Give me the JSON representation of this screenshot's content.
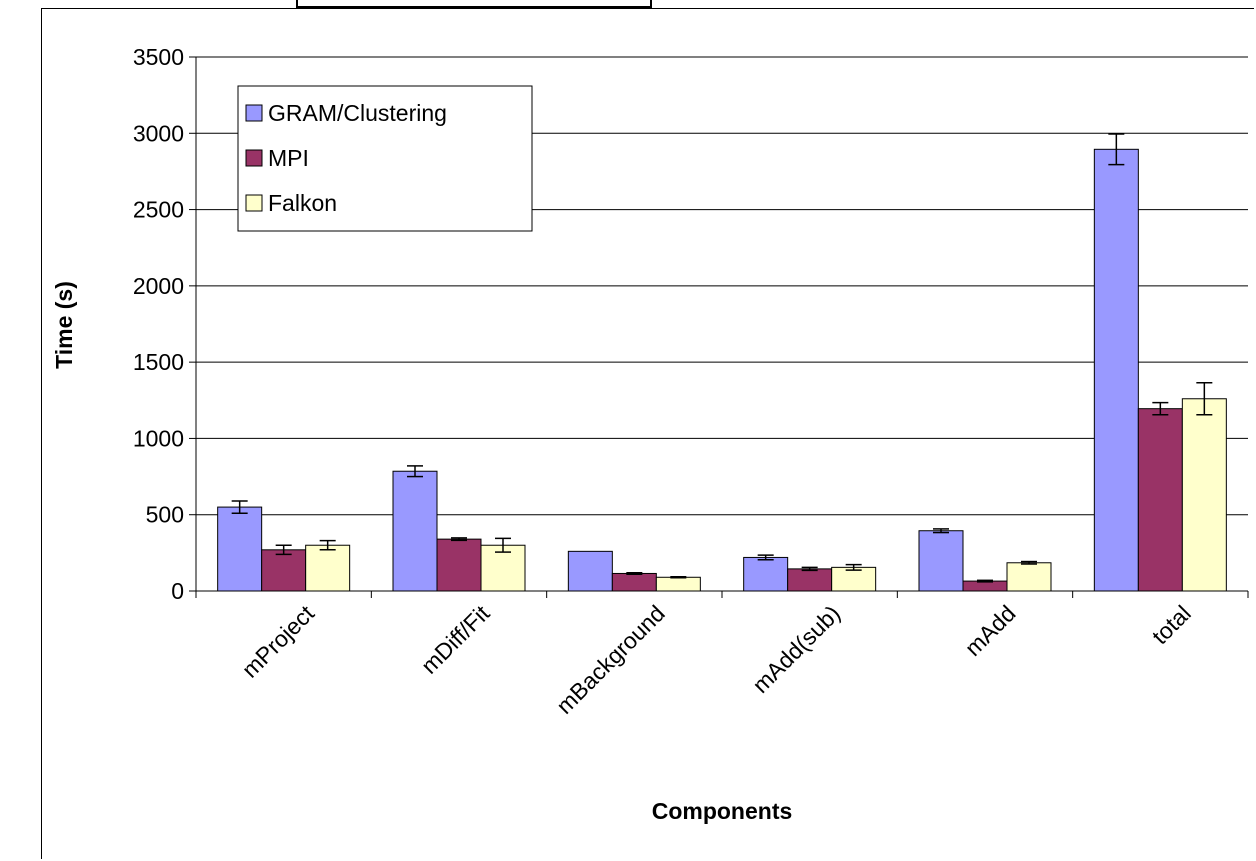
{
  "chart_data": {
    "type": "bar",
    "xlabel": "Components",
    "ylabel": "Time (s)",
    "ylim": [
      0,
      3500
    ],
    "yticks": [
      0,
      500,
      1000,
      1500,
      2000,
      2500,
      3000,
      3500
    ],
    "grid": "horizontal",
    "legend_position": "top-left",
    "categories": [
      "mProject",
      "mDiff/Fit",
      "mBackground",
      "mAdd(sub)",
      "mAdd",
      "total"
    ],
    "series": [
      {
        "name": "GRAM/Clustering",
        "color": "#9999ff",
        "values": [
          550,
          785,
          260,
          220,
          395,
          2895
        ],
        "errors": [
          40,
          35,
          0,
          15,
          12,
          100
        ]
      },
      {
        "name": "MPI",
        "color": "#993366",
        "values": [
          270,
          340,
          115,
          145,
          65,
          1195
        ],
        "errors": [
          30,
          8,
          5,
          10,
          5,
          40
        ]
      },
      {
        "name": "Falkon",
        "color": "#ffffcc",
        "values": [
          300,
          300,
          90,
          155,
          185,
          1260
        ],
        "errors": [
          30,
          45,
          3,
          18,
          8,
          105
        ]
      }
    ]
  }
}
